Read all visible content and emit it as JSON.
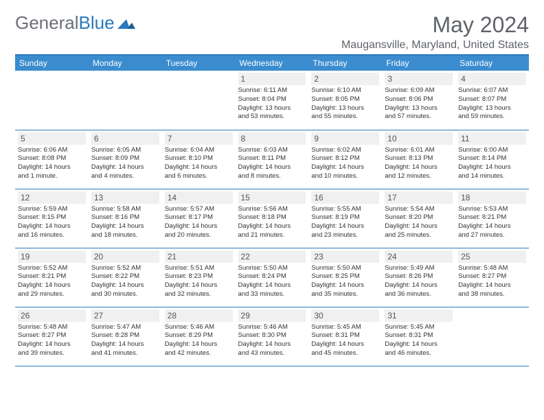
{
  "logo": {
    "part1": "General",
    "part2": "Blue"
  },
  "title": "May 2024",
  "location": "Maugansville, Maryland, United States",
  "colors": {
    "header_bg": "#3a8ccf",
    "border": "#2a79bd",
    "daynum_bg": "#f0f0f0",
    "text": "#333333",
    "title_text": "#5f6368"
  },
  "weekdays": [
    "Sunday",
    "Monday",
    "Tuesday",
    "Wednesday",
    "Thursday",
    "Friday",
    "Saturday"
  ],
  "weeks": [
    [
      null,
      null,
      null,
      {
        "n": "1",
        "sr": "Sunrise: 6:11 AM",
        "ss": "Sunset: 8:04 PM",
        "d1": "Daylight: 13 hours",
        "d2": "and 53 minutes."
      },
      {
        "n": "2",
        "sr": "Sunrise: 6:10 AM",
        "ss": "Sunset: 8:05 PM",
        "d1": "Daylight: 13 hours",
        "d2": "and 55 minutes."
      },
      {
        "n": "3",
        "sr": "Sunrise: 6:09 AM",
        "ss": "Sunset: 8:06 PM",
        "d1": "Daylight: 13 hours",
        "d2": "and 57 minutes."
      },
      {
        "n": "4",
        "sr": "Sunrise: 6:07 AM",
        "ss": "Sunset: 8:07 PM",
        "d1": "Daylight: 13 hours",
        "d2": "and 59 minutes."
      }
    ],
    [
      {
        "n": "5",
        "sr": "Sunrise: 6:06 AM",
        "ss": "Sunset: 8:08 PM",
        "d1": "Daylight: 14 hours",
        "d2": "and 1 minute."
      },
      {
        "n": "6",
        "sr": "Sunrise: 6:05 AM",
        "ss": "Sunset: 8:09 PM",
        "d1": "Daylight: 14 hours",
        "d2": "and 4 minutes."
      },
      {
        "n": "7",
        "sr": "Sunrise: 6:04 AM",
        "ss": "Sunset: 8:10 PM",
        "d1": "Daylight: 14 hours",
        "d2": "and 6 minutes."
      },
      {
        "n": "8",
        "sr": "Sunrise: 6:03 AM",
        "ss": "Sunset: 8:11 PM",
        "d1": "Daylight: 14 hours",
        "d2": "and 8 minutes."
      },
      {
        "n": "9",
        "sr": "Sunrise: 6:02 AM",
        "ss": "Sunset: 8:12 PM",
        "d1": "Daylight: 14 hours",
        "d2": "and 10 minutes."
      },
      {
        "n": "10",
        "sr": "Sunrise: 6:01 AM",
        "ss": "Sunset: 8:13 PM",
        "d1": "Daylight: 14 hours",
        "d2": "and 12 minutes."
      },
      {
        "n": "11",
        "sr": "Sunrise: 6:00 AM",
        "ss": "Sunset: 8:14 PM",
        "d1": "Daylight: 14 hours",
        "d2": "and 14 minutes."
      }
    ],
    [
      {
        "n": "12",
        "sr": "Sunrise: 5:59 AM",
        "ss": "Sunset: 8:15 PM",
        "d1": "Daylight: 14 hours",
        "d2": "and 16 minutes."
      },
      {
        "n": "13",
        "sr": "Sunrise: 5:58 AM",
        "ss": "Sunset: 8:16 PM",
        "d1": "Daylight: 14 hours",
        "d2": "and 18 minutes."
      },
      {
        "n": "14",
        "sr": "Sunrise: 5:57 AM",
        "ss": "Sunset: 8:17 PM",
        "d1": "Daylight: 14 hours",
        "d2": "and 20 minutes."
      },
      {
        "n": "15",
        "sr": "Sunrise: 5:56 AM",
        "ss": "Sunset: 8:18 PM",
        "d1": "Daylight: 14 hours",
        "d2": "and 21 minutes."
      },
      {
        "n": "16",
        "sr": "Sunrise: 5:55 AM",
        "ss": "Sunset: 8:19 PM",
        "d1": "Daylight: 14 hours",
        "d2": "and 23 minutes."
      },
      {
        "n": "17",
        "sr": "Sunrise: 5:54 AM",
        "ss": "Sunset: 8:20 PM",
        "d1": "Daylight: 14 hours",
        "d2": "and 25 minutes."
      },
      {
        "n": "18",
        "sr": "Sunrise: 5:53 AM",
        "ss": "Sunset: 8:21 PM",
        "d1": "Daylight: 14 hours",
        "d2": "and 27 minutes."
      }
    ],
    [
      {
        "n": "19",
        "sr": "Sunrise: 5:52 AM",
        "ss": "Sunset: 8:21 PM",
        "d1": "Daylight: 14 hours",
        "d2": "and 29 minutes."
      },
      {
        "n": "20",
        "sr": "Sunrise: 5:52 AM",
        "ss": "Sunset: 8:22 PM",
        "d1": "Daylight: 14 hours",
        "d2": "and 30 minutes."
      },
      {
        "n": "21",
        "sr": "Sunrise: 5:51 AM",
        "ss": "Sunset: 8:23 PM",
        "d1": "Daylight: 14 hours",
        "d2": "and 32 minutes."
      },
      {
        "n": "22",
        "sr": "Sunrise: 5:50 AM",
        "ss": "Sunset: 8:24 PM",
        "d1": "Daylight: 14 hours",
        "d2": "and 33 minutes."
      },
      {
        "n": "23",
        "sr": "Sunrise: 5:50 AM",
        "ss": "Sunset: 8:25 PM",
        "d1": "Daylight: 14 hours",
        "d2": "and 35 minutes."
      },
      {
        "n": "24",
        "sr": "Sunrise: 5:49 AM",
        "ss": "Sunset: 8:26 PM",
        "d1": "Daylight: 14 hours",
        "d2": "and 36 minutes."
      },
      {
        "n": "25",
        "sr": "Sunrise: 5:48 AM",
        "ss": "Sunset: 8:27 PM",
        "d1": "Daylight: 14 hours",
        "d2": "and 38 minutes."
      }
    ],
    [
      {
        "n": "26",
        "sr": "Sunrise: 5:48 AM",
        "ss": "Sunset: 8:27 PM",
        "d1": "Daylight: 14 hours",
        "d2": "and 39 minutes."
      },
      {
        "n": "27",
        "sr": "Sunrise: 5:47 AM",
        "ss": "Sunset: 8:28 PM",
        "d1": "Daylight: 14 hours",
        "d2": "and 41 minutes."
      },
      {
        "n": "28",
        "sr": "Sunrise: 5:46 AM",
        "ss": "Sunset: 8:29 PM",
        "d1": "Daylight: 14 hours",
        "d2": "and 42 minutes."
      },
      {
        "n": "29",
        "sr": "Sunrise: 5:46 AM",
        "ss": "Sunset: 8:30 PM",
        "d1": "Daylight: 14 hours",
        "d2": "and 43 minutes."
      },
      {
        "n": "30",
        "sr": "Sunrise: 5:45 AM",
        "ss": "Sunset: 8:31 PM",
        "d1": "Daylight: 14 hours",
        "d2": "and 45 minutes."
      },
      {
        "n": "31",
        "sr": "Sunrise: 5:45 AM",
        "ss": "Sunset: 8:31 PM",
        "d1": "Daylight: 14 hours",
        "d2": "and 46 minutes."
      },
      null
    ]
  ]
}
